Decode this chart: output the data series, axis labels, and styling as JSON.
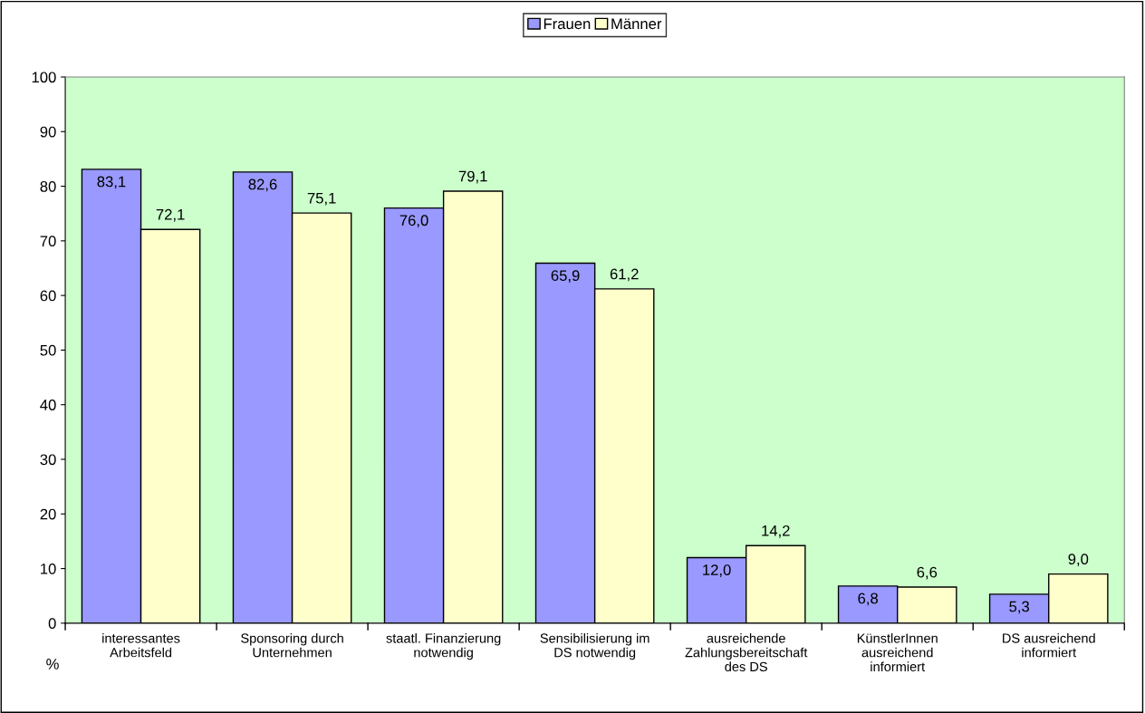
{
  "chart_data": {
    "type": "bar",
    "ylabel": "%",
    "categories": [
      "interessantes\nArbeitsfeld",
      "Sponsoring durch\nUnternehmen",
      "staatl. Finanzierung\nnotwendig",
      "Sensibilisierung im\nDS notwendig",
      "ausreichende\nZahlungsbereitschaft\ndes DS",
      "KünstlerInnen\nausreichend\ninformiert",
      "DS ausreichend\ninformiert"
    ],
    "series": [
      {
        "name": "Frauen",
        "color": "#9999ff",
        "values": [
          83.1,
          82.6,
          76.0,
          65.9,
          12.0,
          6.8,
          5.3
        ],
        "value_labels": [
          "83,1",
          "82,6",
          "76,0",
          "65,9",
          "12,0",
          "6,8",
          "5,3"
        ]
      },
      {
        "name": "Männer",
        "color": "#ffffcc",
        "values": [
          72.1,
          75.1,
          79.1,
          61.2,
          14.2,
          6.6,
          9.0
        ],
        "value_labels": [
          "72,1",
          "75,1",
          "79,1",
          "61,2",
          "14,2",
          "6,6",
          "9,0"
        ]
      }
    ],
    "ylim": [
      0,
      100
    ],
    "yticks": [
      0,
      10,
      20,
      30,
      40,
      50,
      60,
      70,
      80,
      90,
      100
    ],
    "grid": false,
    "legend": "top"
  }
}
